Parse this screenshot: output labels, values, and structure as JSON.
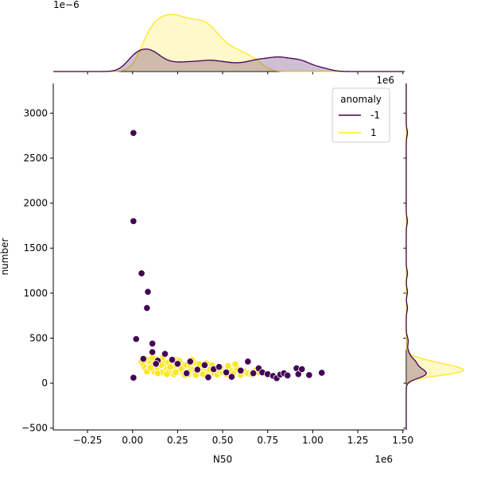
{
  "chart_data": {
    "type": "scatter",
    "kind": "jointplot",
    "xlabel": "N50",
    "ylabel": "number",
    "x_scale_label": "1e6",
    "xlim": [
      -0.44,
      1.51
    ],
    "ylim": [
      -520,
      3330
    ],
    "x_ticks": [
      -0.25,
      0.0,
      0.25,
      0.5,
      0.75,
      1.0,
      1.25,
      1.5
    ],
    "x_tick_labels": [
      "−0.25",
      "0.00",
      "0.25",
      "0.50",
      "0.75",
      "1.00",
      "1.25",
      "1.50"
    ],
    "y_ticks": [
      -500,
      0,
      500,
      1000,
      1500,
      2000,
      2500,
      3000
    ],
    "y_tick_labels": [
      "−500",
      "0",
      "500",
      "1000",
      "1500",
      "2000",
      "2500",
      "3000"
    ],
    "top_margin_scale_label": "1e−6",
    "right_margin_scale_label": "1e6",
    "legend": {
      "title": "anomaly",
      "placement": "top-right",
      "entries": [
        {
          "label": "-1",
          "color": "#440154"
        },
        {
          "label": "1",
          "color": "#fde725"
        }
      ]
    },
    "series": [
      {
        "name": "-1",
        "color": "#440154",
        "points": [
          [
            0.005,
            2780
          ],
          [
            0.005,
            1800
          ],
          [
            0.05,
            1220
          ],
          [
            0.085,
            1015
          ],
          [
            0.08,
            835
          ],
          [
            0.11,
            440
          ],
          [
            0.02,
            490
          ],
          [
            0.005,
            60
          ],
          [
            0.11,
            345
          ],
          [
            0.14,
            250
          ],
          [
            0.18,
            325
          ],
          [
            0.25,
            215
          ],
          [
            0.32,
            240
          ],
          [
            0.4,
            200
          ],
          [
            0.45,
            155
          ],
          [
            0.52,
            120
          ],
          [
            0.55,
            70
          ],
          [
            0.64,
            240
          ],
          [
            0.7,
            165
          ],
          [
            0.72,
            120
          ],
          [
            0.75,
            100
          ],
          [
            0.78,
            80
          ],
          [
            0.8,
            55
          ],
          [
            0.82,
            95
          ],
          [
            0.84,
            110
          ],
          [
            0.86,
            85
          ],
          [
            0.91,
            165
          ],
          [
            0.92,
            100
          ],
          [
            0.94,
            155
          ],
          [
            0.98,
            90
          ],
          [
            1.05,
            115
          ],
          [
            0.06,
            270
          ],
          [
            0.3,
            110
          ],
          [
            0.42,
            65
          ],
          [
            0.48,
            180
          ],
          [
            0.6,
            140
          ],
          [
            0.67,
            110
          ],
          [
            0.36,
            150
          ],
          [
            0.22,
            260
          ],
          [
            0.13,
            215
          ]
        ]
      },
      {
        "name": "1",
        "color": "#fde725",
        "points": [
          [
            0.05,
            240
          ],
          [
            0.06,
            200
          ],
          [
            0.07,
            170
          ],
          [
            0.08,
            260
          ],
          [
            0.09,
            150
          ],
          [
            0.1,
            220
          ],
          [
            0.11,
            190
          ],
          [
            0.12,
            130
          ],
          [
            0.13,
            270
          ],
          [
            0.14,
            160
          ],
          [
            0.15,
            210
          ],
          [
            0.16,
            120
          ],
          [
            0.17,
            240
          ],
          [
            0.18,
            180
          ],
          [
            0.19,
            150
          ],
          [
            0.2,
            230
          ],
          [
            0.21,
            110
          ],
          [
            0.22,
            200
          ],
          [
            0.23,
            170
          ],
          [
            0.24,
            260
          ],
          [
            0.25,
            140
          ],
          [
            0.26,
            190
          ],
          [
            0.27,
            220
          ],
          [
            0.28,
            120
          ],
          [
            0.29,
            160
          ],
          [
            0.3,
            200
          ],
          [
            0.31,
            100
          ],
          [
            0.32,
            180
          ],
          [
            0.33,
            150
          ],
          [
            0.34,
            230
          ],
          [
            0.35,
            130
          ],
          [
            0.36,
            170
          ],
          [
            0.37,
            110
          ],
          [
            0.38,
            190
          ],
          [
            0.39,
            140
          ],
          [
            0.4,
            160
          ],
          [
            0.41,
            120
          ],
          [
            0.42,
            100
          ],
          [
            0.43,
            180
          ],
          [
            0.44,
            130
          ],
          [
            0.45,
            110
          ],
          [
            0.46,
            150
          ],
          [
            0.47,
            95
          ],
          [
            0.48,
            140
          ],
          [
            0.5,
            120
          ],
          [
            0.52,
            100
          ],
          [
            0.54,
            150
          ],
          [
            0.56,
            110
          ],
          [
            0.58,
            160
          ],
          [
            0.6,
            90
          ],
          [
            0.62,
            130
          ],
          [
            0.64,
            110
          ],
          [
            0.66,
            100
          ],
          [
            0.68,
            140
          ],
          [
            0.7,
            120
          ],
          [
            0.08,
            130
          ],
          [
            0.11,
            280
          ],
          [
            0.14,
            110
          ],
          [
            0.17,
            290
          ],
          [
            0.2,
            130
          ],
          [
            0.23,
            100
          ],
          [
            0.26,
            250
          ],
          [
            0.29,
            90
          ],
          [
            0.33,
            260
          ],
          [
            0.37,
            210
          ],
          [
            0.41,
            220
          ],
          [
            0.44,
            200
          ],
          [
            0.49,
            170
          ],
          [
            0.53,
            190
          ],
          [
            0.57,
            210
          ],
          [
            0.1,
            170
          ],
          [
            0.16,
            200
          ],
          [
            0.19,
            100
          ],
          [
            0.21,
            180
          ],
          [
            0.24,
            120
          ],
          [
            0.27,
            160
          ],
          [
            0.31,
            130
          ],
          [
            0.35,
            90
          ],
          [
            0.39,
            100
          ],
          [
            0.43,
            150
          ]
        ]
      }
    ]
  }
}
